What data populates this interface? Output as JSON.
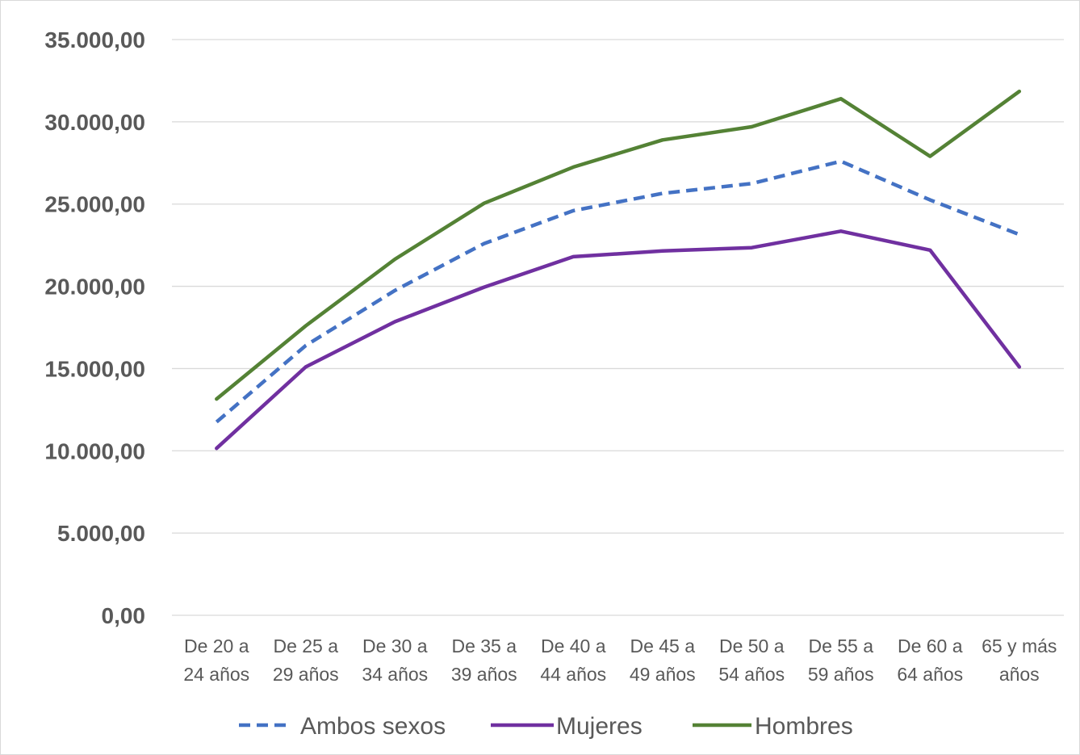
{
  "chart_data": {
    "type": "line",
    "categories": [
      [
        "De 20 a",
        "24 años"
      ],
      [
        "De 25 a",
        "29 años"
      ],
      [
        "De 30 a",
        "34 años"
      ],
      [
        "De 35 a",
        "39 años"
      ],
      [
        "De 40 a",
        "44 años"
      ],
      [
        "De 45 a",
        "49 años"
      ],
      [
        "De 50 a",
        "54 años"
      ],
      [
        "De 55 a",
        "59 años"
      ],
      [
        "De 60 a",
        "64 años"
      ],
      [
        "65 y más",
        "años"
      ]
    ],
    "ylim": [
      0,
      35000
    ],
    "yticks": [
      0,
      5000,
      10000,
      15000,
      20000,
      25000,
      30000,
      35000
    ],
    "ytick_labels": [
      "0,00",
      "5.000,00",
      "10.000,00",
      "15.000,00",
      "20.000,00",
      "25.000,00",
      "30.000,00",
      "35.000,00"
    ],
    "grid": true,
    "legend_position": "bottom",
    "series": [
      {
        "name": "Ambos sexos",
        "color": "#4472c4",
        "style": "dashed",
        "values": [
          11750,
          16400,
          19750,
          22600,
          24600,
          25650,
          26250,
          27600,
          25250,
          23150
        ]
      },
      {
        "name": "Mujeres",
        "color": "#7030a0",
        "style": "solid",
        "values": [
          10150,
          15100,
          17850,
          19950,
          21800,
          22150,
          22350,
          23350,
          22200,
          15100
        ]
      },
      {
        "name": "Hombres",
        "color": "#548235",
        "style": "solid",
        "values": [
          13150,
          17600,
          21650,
          25050,
          27250,
          28900,
          29700,
          31400,
          27900,
          31850
        ]
      }
    ]
  }
}
